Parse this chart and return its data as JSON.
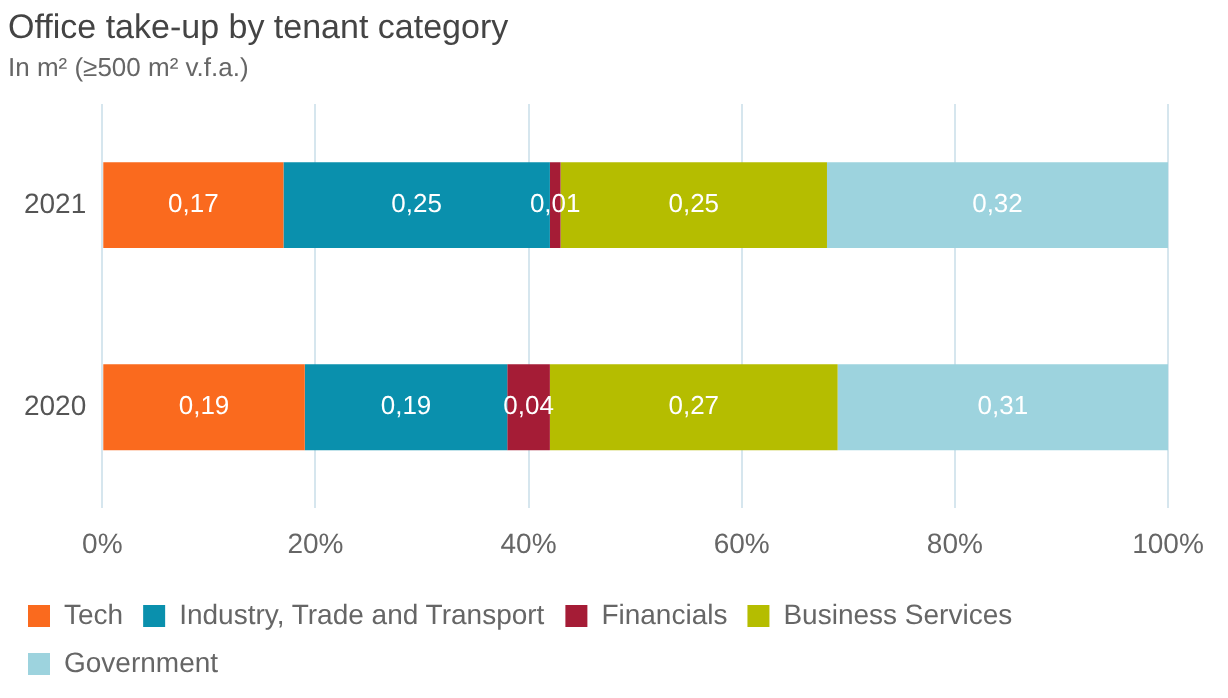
{
  "chart_data": {
    "type": "bar",
    "orientation": "horizontal",
    "stacked": true,
    "title": "Office take-up by tenant category",
    "subtitle": "In m² (≥500 m² v.f.a.)",
    "categories": [
      "2021",
      "2020"
    ],
    "series": [
      {
        "name": "Tech",
        "color": "#fa6a1e",
        "values": [
          0.17,
          0.19
        ],
        "value_labels": [
          "0,17",
          "0,19"
        ]
      },
      {
        "name": "Industry, Trade and Transport",
        "color": "#0a90ad",
        "values": [
          0.25,
          0.19
        ],
        "value_labels": [
          "0,25",
          "0,19"
        ]
      },
      {
        "name": "Financials",
        "color": "#a51c36",
        "values": [
          0.01,
          0.04
        ],
        "value_labels": [
          "0,01",
          "0,04"
        ]
      },
      {
        "name": "Business Services",
        "color": "#b5bd00",
        "values": [
          0.25,
          0.27
        ],
        "value_labels": [
          "0,25",
          "0,27"
        ]
      },
      {
        "name": "Government",
        "color": "#9dd3de",
        "values": [
          0.32,
          0.31
        ],
        "value_labels": [
          "0,32",
          "0,31"
        ]
      }
    ],
    "xlim": [
      0,
      1
    ],
    "xticks": [
      {
        "value": 0,
        "label": "0%"
      },
      {
        "value": 0.2,
        "label": "20%"
      },
      {
        "value": 0.4,
        "label": "40%"
      },
      {
        "value": 0.6,
        "label": "60%"
      },
      {
        "value": 0.8,
        "label": "80%"
      },
      {
        "value": 1,
        "label": "100%"
      }
    ],
    "grid": "x",
    "legend": "bottom"
  }
}
